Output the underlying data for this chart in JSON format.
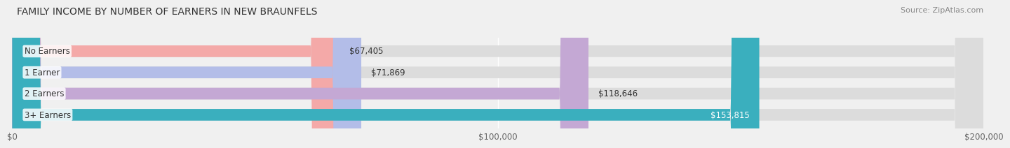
{
  "title": "FAMILY INCOME BY NUMBER OF EARNERS IN NEW BRAUNFELS",
  "source": "Source: ZipAtlas.com",
  "categories": [
    "No Earners",
    "1 Earner",
    "2 Earners",
    "3+ Earners"
  ],
  "values": [
    67405,
    71869,
    118646,
    153815
  ],
  "bar_colors": [
    "#f4a9a8",
    "#b3bde8",
    "#c4a8d4",
    "#3aafbe"
  ],
  "label_colors": [
    "#555555",
    "#555555",
    "#555555",
    "#ffffff"
  ],
  "value_labels": [
    "$67,405",
    "$71,869",
    "$118,646",
    "$153,815"
  ],
  "xlim": [
    0,
    200000
  ],
  "xticks": [
    0,
    100000,
    200000
  ],
  "xtick_labels": [
    "$0",
    "$100,000",
    "$200,000"
  ],
  "bar_height": 0.55,
  "background_color": "#f0f0f0",
  "bar_bg_color": "#dcdcdc",
  "title_fontsize": 10,
  "label_fontsize": 8.5,
  "value_fontsize": 8.5,
  "source_fontsize": 8
}
